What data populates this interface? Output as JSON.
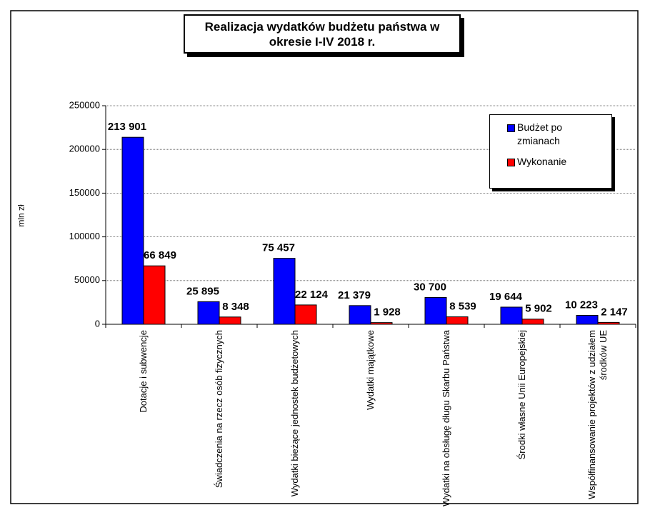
{
  "chart_data": {
    "type": "bar",
    "title": "Realizacja wydatków budżetu państwa w okresie I-IV 2018 r.",
    "y_label": "mln zł",
    "categories": [
      "Dotacje i subwencje",
      "Świadczenia na rzecz osób fizycznych",
      "Wydatki bieżące jednostek budżetowych",
      "Wydatki majątkowe",
      "Wydatki na obsługę długu Skarbu Państwa",
      "Środki własne Unii Europejskiej",
      "Współfinansowanie projektów z udziałem środków UE"
    ],
    "series": [
      {
        "name": "Budżet po zmianach",
        "color": "#0000ff",
        "values": [
          213901,
          25895,
          75457,
          21379,
          30700,
          19644,
          10223
        ],
        "value_labels": [
          "213 901",
          "25 895",
          "75 457",
          "21 379",
          "30 700",
          "19 644",
          "10 223"
        ]
      },
      {
        "name": "Wykonanie",
        "color": "#ff0000",
        "values": [
          66849,
          8348,
          22124,
          1928,
          8539,
          5902,
          2147
        ],
        "value_labels": [
          "66 849",
          "8 348",
          "22 124",
          "1 928",
          "8 539",
          "5 902",
          "2 147"
        ]
      }
    ],
    "ylim": [
      0,
      250000
    ],
    "yticks": [
      0,
      50000,
      100000,
      150000,
      200000,
      250000
    ],
    "grid": true,
    "legend": "upper right"
  }
}
